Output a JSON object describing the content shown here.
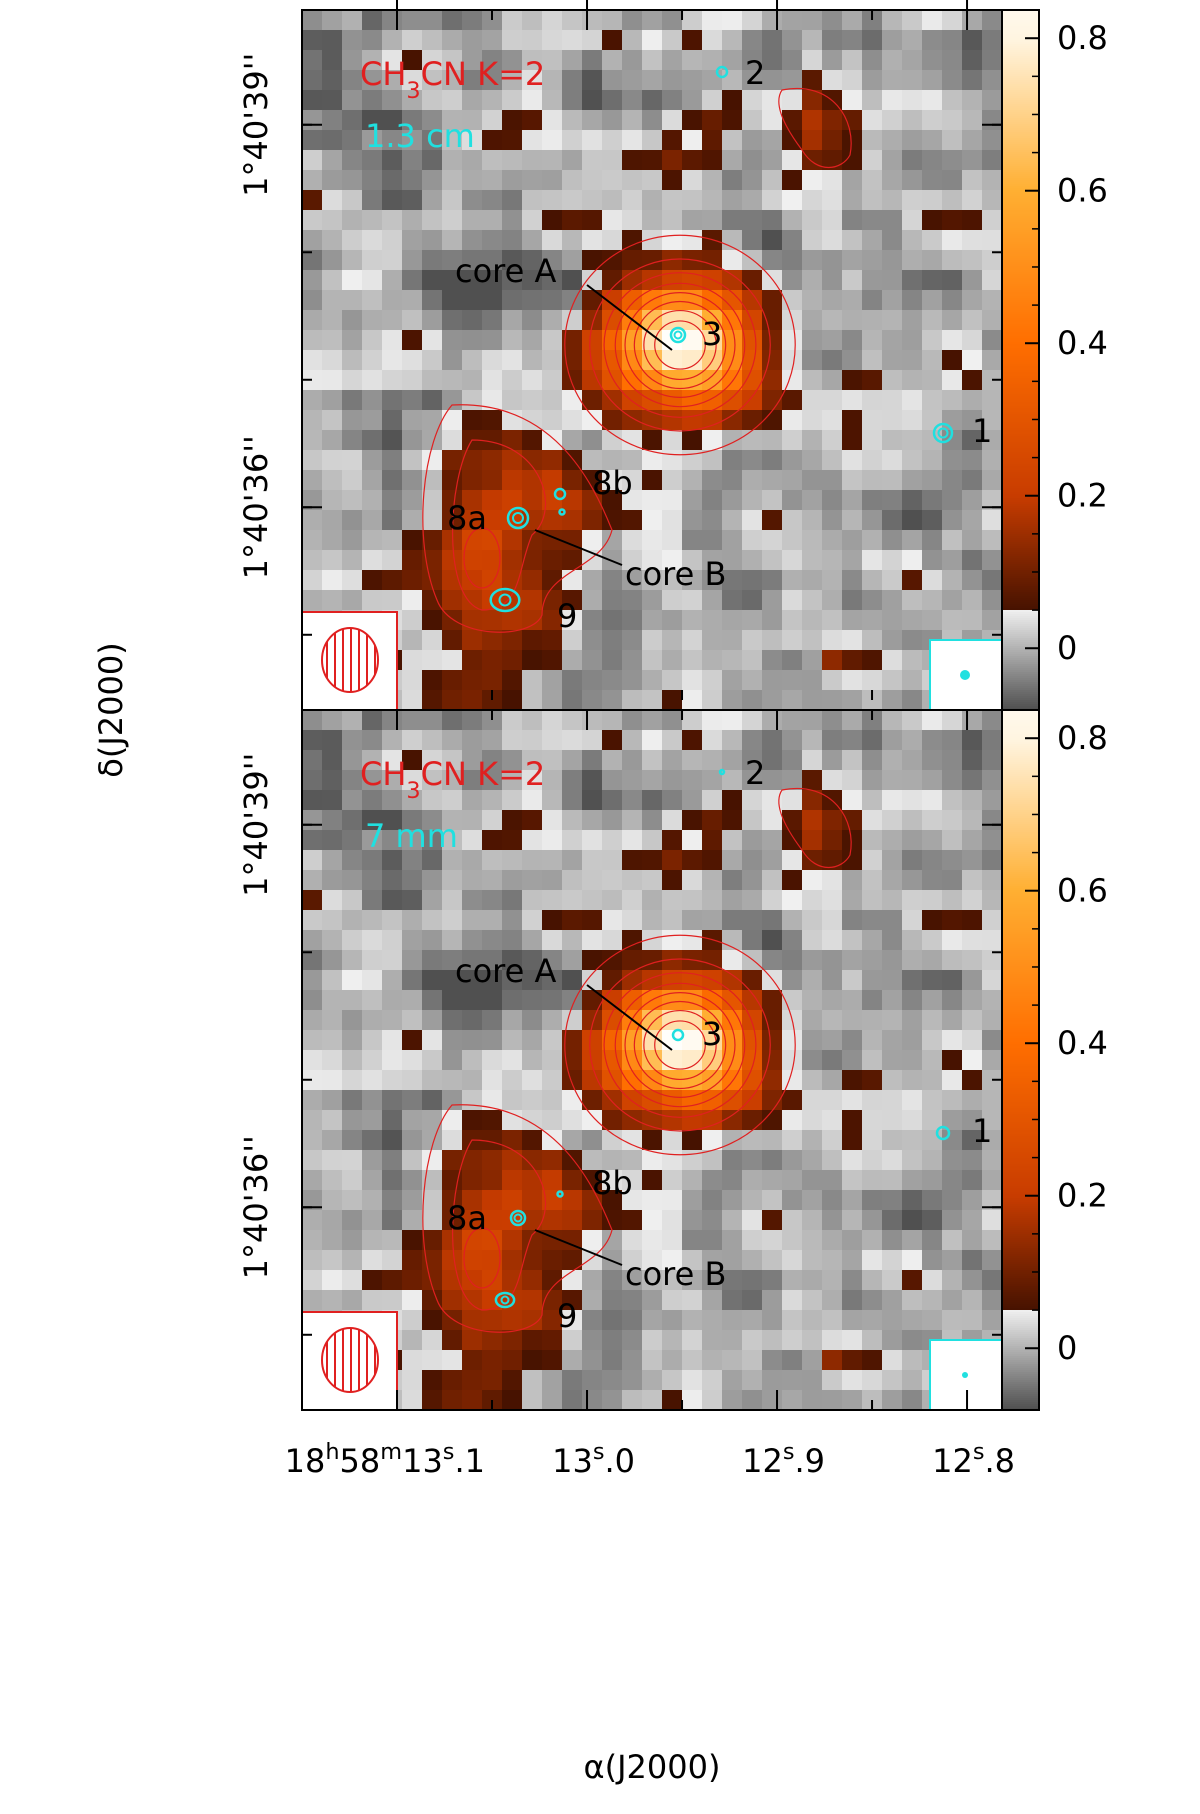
{
  "chart_data": [
    {
      "type": "image",
      "y_label": "δ(J2000)",
      "line_label": "CH3CN K=2",
      "continuum_label": "1.3 cm",
      "annotations": [
        "2",
        "core A",
        "3",
        "1",
        "8b",
        "8a",
        "core B",
        "9"
      ],
      "ylim": [
        34.41,
        39.9
      ],
      "yticks": [
        {
          "value": 39,
          "label": "1°40'39''"
        },
        {
          "value": 36,
          "label": "1°40'36''"
        }
      ],
      "colorbar_lim": [
        -0.081,
        0.837
      ],
      "colorbar_ticks": [
        0,
        0.2,
        0.4,
        0.6,
        0.8
      ]
    },
    {
      "type": "image",
      "line_label": "CH3CN K=2",
      "continuum_label": "7 mm",
      "annotations": [
        "2",
        "core A",
        "3",
        "1",
        "8b",
        "8a",
        "core B",
        "9"
      ],
      "ylim": [
        34.41,
        39.9
      ],
      "yticks": [
        {
          "value": 39,
          "label": "1°40'39''"
        },
        {
          "value": 36,
          "label": "1°40'36''"
        }
      ],
      "colorbar_lim": [
        -0.081,
        0.837
      ],
      "colorbar_ticks": [
        0,
        0.2,
        0.4,
        0.6,
        0.8
      ],
      "x_label": "α(J2000)",
      "xlim": [
        13.15,
        12.7816
      ],
      "xticks": [
        {
          "value": 13.1,
          "label": "18h58m13s.1"
        },
        {
          "value": 13.0,
          "label": "13s.0"
        },
        {
          "value": 12.9,
          "label": "12s.9"
        },
        {
          "value": 12.8,
          "label": "12s.8"
        }
      ]
    }
  ]
}
